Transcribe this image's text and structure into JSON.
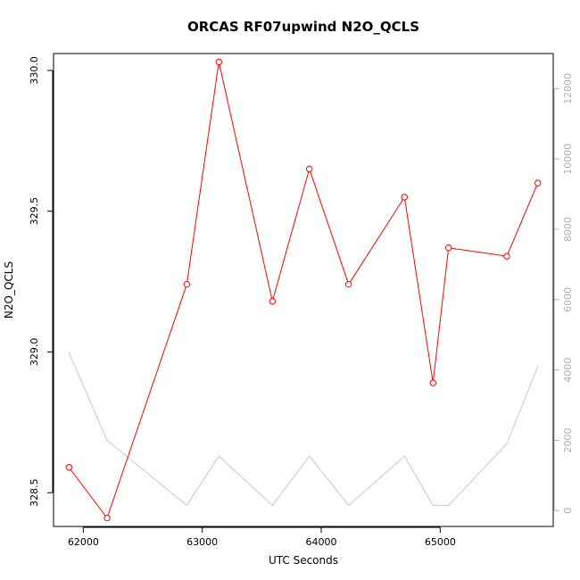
{
  "chart_data": {
    "type": "line",
    "title": "ORCAS RF07upwind N2O_QCLS",
    "xlabel": "UTC Seconds",
    "ylabel": "N2O_QCLS",
    "xlim": [
      61750,
      65950
    ],
    "ylim": [
      328.38,
      330.06
    ],
    "y2lim": [
      -450,
      13000
    ],
    "x_ticks": [
      62000,
      63000,
      64000,
      65000
    ],
    "x_tick_labels": [
      "62000",
      "63000",
      "64000",
      "65000"
    ],
    "y_ticks": [
      328.5,
      329.0,
      329.5,
      330.0
    ],
    "y_tick_labels": [
      "328.5",
      "329.0",
      "329.5",
      "330.0"
    ],
    "y2_ticks": [
      0,
      2000,
      4000,
      6000,
      8000,
      10000,
      12000
    ],
    "y2_tick_labels": [
      "0",
      "2000",
      "4000",
      "6000",
      "8000",
      "10000",
      "12000"
    ],
    "grid": false,
    "series": [
      {
        "color": "#ff0000",
        "axis": "left",
        "markers": "open-circle",
        "x": [
          61880,
          62200,
          62870,
          63140,
          63590,
          63900,
          64230,
          64700,
          64940,
          65070,
          65560,
          65820
        ],
        "y": [
          328.59,
          328.41,
          329.24,
          330.03,
          329.18,
          329.65,
          329.24,
          329.55,
          328.89,
          329.37,
          329.34,
          329.6
        ]
      },
      {
        "color": "#c8c8c8",
        "axis": "right",
        "markers": "none",
        "x": [
          61880,
          62200,
          62870,
          63140,
          63590,
          63900,
          64230,
          64700,
          64940,
          65070,
          65560,
          65820
        ],
        "y": [
          4500,
          2000,
          150,
          1550,
          150,
          1550,
          150,
          1550,
          150,
          150,
          1900,
          4100
        ]
      }
    ]
  }
}
